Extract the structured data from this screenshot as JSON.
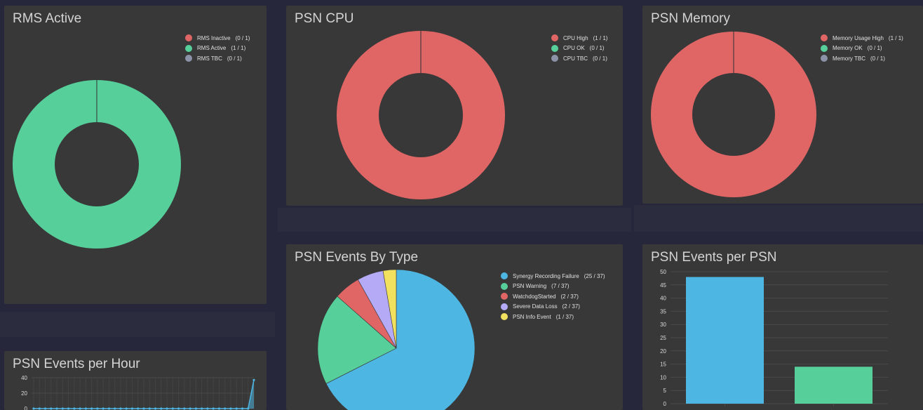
{
  "panels": {
    "rms_active": {
      "title": "RMS Active",
      "legend": [
        {
          "label": "RMS Inactive",
          "count": "(0 / 1)",
          "color": "#e06666"
        },
        {
          "label": "RMS Active",
          "count": "(1 / 1)",
          "color": "#57cf9b"
        },
        {
          "label": "RMS TBC",
          "count": "(0 / 1)",
          "color": "#8c93a8"
        }
      ]
    },
    "psn_cpu": {
      "title": "PSN CPU",
      "legend": [
        {
          "label": "CPU High",
          "count": "(1 / 1)",
          "color": "#e06666"
        },
        {
          "label": "CPU OK",
          "count": "(0 / 1)",
          "color": "#57cf9b"
        },
        {
          "label": "CPU TBC",
          "count": "(0 / 1)",
          "color": "#8c93a8"
        }
      ]
    },
    "psn_memory": {
      "title": "PSN Memory",
      "legend": [
        {
          "label": "Memory Usage High",
          "count": "(1 / 1)",
          "color": "#e06666"
        },
        {
          "label": "Memory OK",
          "count": "(0 / 1)",
          "color": "#57cf9b"
        },
        {
          "label": "Memory TBC",
          "count": "(0 / 1)",
          "color": "#8c93a8"
        }
      ]
    },
    "events_by_type": {
      "title": "PSN Events By Type",
      "legend": [
        {
          "label": "Synergy Recording Failure",
          "count": "(25 / 37)",
          "color": "#4db6e2"
        },
        {
          "label": "PSN Warning",
          "count": "(7 / 37)",
          "color": "#57cf9b"
        },
        {
          "label": "WatchdogStarted",
          "count": "(2 / 37)",
          "color": "#e06666"
        },
        {
          "label": "Severe Data Loss",
          "count": "(2 / 37)",
          "color": "#b4aaf5"
        },
        {
          "label": "PSN Info Event",
          "count": "(1 / 37)",
          "color": "#f1e15e"
        }
      ]
    },
    "events_per_psn": {
      "title": "PSN Events per PSN"
    },
    "events_per_hour": {
      "title": "PSN Events per Hour"
    }
  },
  "chart_data": [
    {
      "type": "pie",
      "donut": true,
      "labels": [
        "RMS Inactive",
        "RMS Active",
        "RMS TBC"
      ],
      "values": [
        0,
        1,
        0
      ],
      "colors": [
        "#e06666",
        "#57cf9b",
        "#8c93a8"
      ]
    },
    {
      "type": "pie",
      "donut": true,
      "labels": [
        "CPU High",
        "CPU OK",
        "CPU TBC"
      ],
      "values": [
        1,
        0,
        0
      ],
      "colors": [
        "#e06666",
        "#57cf9b",
        "#8c93a8"
      ]
    },
    {
      "type": "pie",
      "donut": true,
      "labels": [
        "Memory Usage High",
        "Memory OK",
        "Memory TBC"
      ],
      "values": [
        1,
        0,
        0
      ],
      "colors": [
        "#e06666",
        "#57cf9b",
        "#8c93a8"
      ]
    },
    {
      "type": "pie",
      "donut": false,
      "labels": [
        "Synergy Recording Failure",
        "PSN Warning",
        "WatchdogStarted",
        "Severe Data Loss",
        "PSN Info Event"
      ],
      "values": [
        25,
        7,
        2,
        2,
        1
      ],
      "colors": [
        "#4db6e2",
        "#57cf9b",
        "#e06666",
        "#b4aaf5",
        "#f1e15e"
      ]
    },
    {
      "type": "bar",
      "categories": [
        "",
        ""
      ],
      "values": [
        48,
        14
      ],
      "colors": [
        "#4db6e2",
        "#57cf9b"
      ],
      "ylim": [
        0,
        50
      ],
      "yticks": [
        "0",
        "5",
        "10",
        "15",
        "20",
        "25",
        "30",
        "35",
        "40",
        "45",
        "50"
      ],
      "grid": true
    },
    {
      "type": "line",
      "values": [
        0,
        0,
        0,
        0,
        0,
        0,
        0,
        0,
        0,
        0,
        0,
        0,
        0,
        0,
        0,
        0,
        0,
        0,
        0,
        0,
        0,
        0,
        0,
        0,
        0,
        0,
        0,
        0,
        0,
        0,
        0,
        0,
        0,
        0,
        0,
        0,
        0,
        0,
        37
      ],
      "ylim": [
        0,
        40
      ],
      "yticks": [
        "0",
        "20",
        "40"
      ],
      "color": "#4db6e2",
      "grid": true
    }
  ]
}
